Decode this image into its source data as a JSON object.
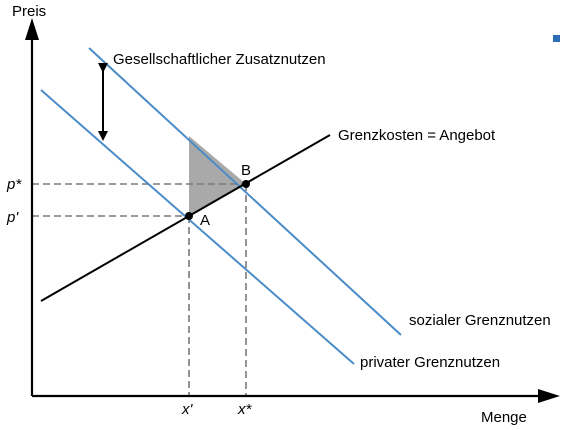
{
  "labels": {
    "y_axis": "Preis",
    "x_axis": "Menge",
    "social_marginal_benefit": "sozialer Grenznutzen",
    "private_marginal_benefit": "privater Grenznutzen",
    "marginal_cost_supply": "Grenzkosten = Angebot",
    "external_benefit": "Gesellschaftlicher Zusatznutzen",
    "point_a": "A",
    "point_b": "B",
    "price_star": "p*",
    "price_prime": "p'",
    "qty_prime": "x'",
    "qty_star": "x*"
  },
  "colors": {
    "benefit_lines": "#4a8cc8",
    "cost_line": "#000000",
    "welfare_area": "#a9a9a9",
    "guides": "#7a7a7a",
    "marker": "#2a6db5"
  }
}
